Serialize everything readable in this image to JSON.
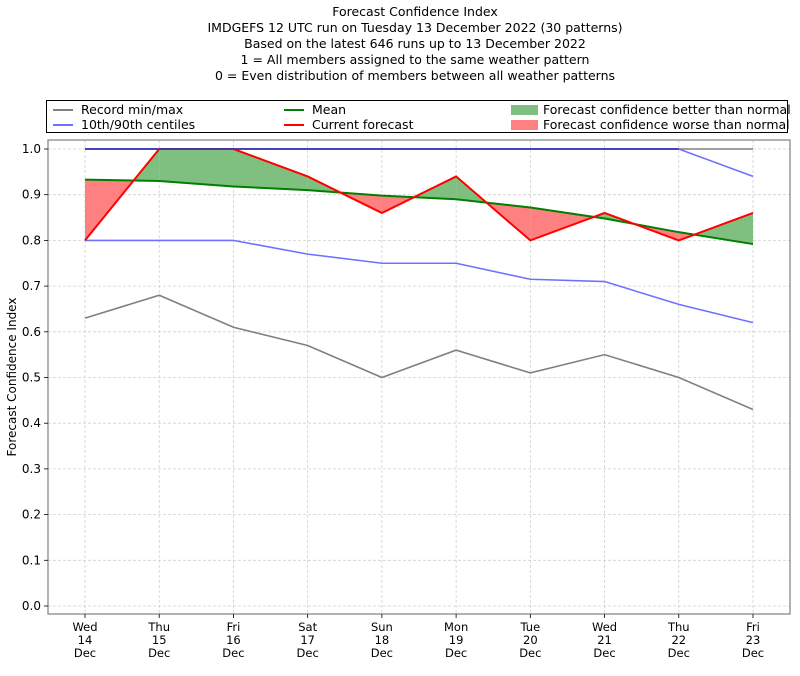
{
  "chart_data": {
    "type": "line",
    "title": "Forecast Confidence Index",
    "subtitle_lines": [
      "IMDGEFS 12 UTC run on Tuesday 13 December 2022 (30 patterns)",
      "Based on the latest 646 runs up to 13 December 2022",
      "1 = All members assigned to the same weather pattern",
      "0 = Even distribution of members between all weather patterns"
    ],
    "xlabel": "",
    "ylabel": "Forecast Confidence Index",
    "ylim": [
      0.0,
      1.0
    ],
    "yticks": [
      "0.0",
      "0.1",
      "0.2",
      "0.3",
      "0.4",
      "0.5",
      "0.6",
      "0.7",
      "0.8",
      "0.9",
      "1.0"
    ],
    "ytick_values": [
      0.0,
      0.1,
      0.2,
      0.3,
      0.4,
      0.5,
      0.6,
      0.7,
      0.8,
      0.9,
      1.0
    ],
    "grid": true,
    "legend_position": "top (above plot, 3 columns)",
    "categories": [
      [
        "Wed",
        "14",
        "Dec"
      ],
      [
        "Thu",
        "15",
        "Dec"
      ],
      [
        "Fri",
        "16",
        "Dec"
      ],
      [
        "Sat",
        "17",
        "Dec"
      ],
      [
        "Sun",
        "18",
        "Dec"
      ],
      [
        "Mon",
        "19",
        "Dec"
      ],
      [
        "Tue",
        "20",
        "Dec"
      ],
      [
        "Wed",
        "21",
        "Dec"
      ],
      [
        "Thu",
        "22",
        "Dec"
      ],
      [
        "Fri",
        "23",
        "Dec"
      ]
    ],
    "series": [
      {
        "name": "Record max",
        "legend": "Record min/max",
        "color": "#808080",
        "values": [
          1.0,
          1.0,
          1.0,
          1.0,
          1.0,
          1.0,
          1.0,
          1.0,
          1.0,
          1.0
        ]
      },
      {
        "name": "Record min",
        "legend": "Record min/max",
        "color": "#808080",
        "values": [
          0.63,
          0.68,
          0.61,
          0.57,
          0.5,
          0.56,
          0.51,
          0.55,
          0.5,
          0.43
        ]
      },
      {
        "name": "90th centile",
        "legend": "10th/90th centiles",
        "color": "#7070ff",
        "values": [
          1.0,
          1.0,
          1.0,
          1.0,
          1.0,
          1.0,
          1.0,
          1.0,
          1.0,
          0.94
        ]
      },
      {
        "name": "10th centile",
        "legend": "10th/90th centiles",
        "color": "#7070ff",
        "values": [
          0.8,
          0.8,
          0.8,
          0.77,
          0.75,
          0.75,
          0.715,
          0.71,
          0.66,
          0.62
        ]
      },
      {
        "name": "Mean",
        "legend": "Mean",
        "color": "#007f00",
        "values": [
          0.933,
          0.93,
          0.918,
          0.91,
          0.898,
          0.89,
          0.872,
          0.848,
          0.818,
          0.792
        ]
      },
      {
        "name": "Current forecast",
        "legend": "Current forecast",
        "color": "#ff0000",
        "values": [
          0.8,
          1.0,
          1.0,
          0.94,
          0.86,
          0.94,
          0.8,
          0.86,
          0.8,
          0.86
        ]
      }
    ],
    "fills": [
      {
        "name": "Forecast confidence better than normal",
        "color": "#7fbf7f",
        "between": [
          "Current forecast",
          "Mean"
        ],
        "where": "current > mean"
      },
      {
        "name": "Forecast confidence worse than normal",
        "color": "#ff8080",
        "between": [
          "Current forecast",
          "Mean"
        ],
        "where": "current < mean"
      }
    ],
    "legend": [
      {
        "label": "Record min/max",
        "kind": "line",
        "color": "#808080"
      },
      {
        "label": "10th/90th centiles",
        "kind": "line",
        "color": "#7070ff"
      },
      {
        "label": "Mean",
        "kind": "line",
        "color": "#007f00"
      },
      {
        "label": "Current forecast",
        "kind": "line",
        "color": "#ff0000"
      },
      {
        "label": "Forecast confidence better than normal",
        "kind": "patch",
        "color": "#7fbf7f"
      },
      {
        "label": "Forecast confidence worse than normal",
        "kind": "patch",
        "color": "#ff8080"
      }
    ]
  }
}
